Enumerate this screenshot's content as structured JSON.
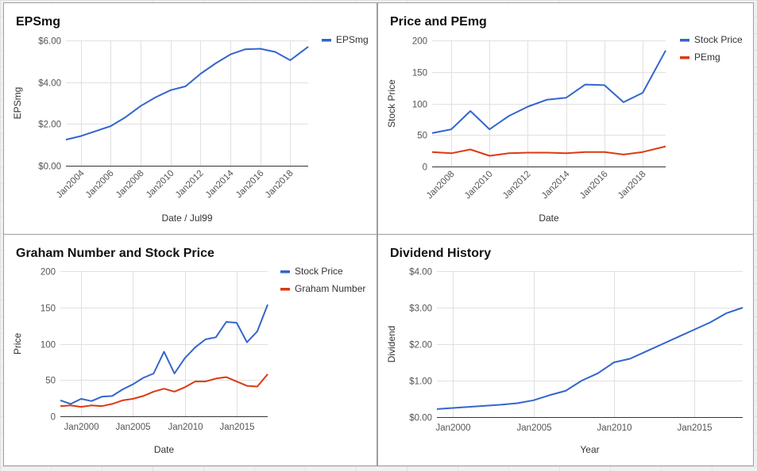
{
  "colors": {
    "blue": "#3366cc",
    "red": "#dc3912"
  },
  "chart_data": [
    {
      "id": "eps",
      "type": "line",
      "title": "EPSmg",
      "xlabel": "Date / Jul99",
      "ylabel": "EPSmg",
      "x_ticks": [
        "Jan2004",
        "Jan2006",
        "Jan2008",
        "Jan2010",
        "Jan2012",
        "Jan2014",
        "Jan2016",
        "Jan2018"
      ],
      "y_ticks": [
        "$0.00",
        "$2.00",
        "$4.00",
        "$6.00"
      ],
      "xlim": [
        2003,
        2019.2
      ],
      "ylim": [
        0,
        6
      ],
      "legend_position": "right",
      "grid": true,
      "series": [
        {
          "name": "EPSmg",
          "color": "#3366cc",
          "x": [
            2003,
            2004,
            2005,
            2006,
            2007,
            2008,
            2009,
            2010,
            2011,
            2012,
            2013,
            2014,
            2015,
            2016,
            2017,
            2018,
            2019.2
          ],
          "y": [
            1.25,
            1.42,
            1.66,
            1.9,
            2.33,
            2.86,
            3.28,
            3.62,
            3.8,
            4.4,
            4.9,
            5.33,
            5.58,
            5.6,
            5.45,
            5.05,
            5.7
          ]
        }
      ]
    },
    {
      "id": "pe",
      "type": "line",
      "title": "Price and PEmg",
      "xlabel": "Date",
      "ylabel": "Stock Price",
      "x_ticks": [
        "Jan2008",
        "Jan2010",
        "Jan2012",
        "Jan2014",
        "Jan2016",
        "Jan2018"
      ],
      "y_ticks": [
        "0",
        "50",
        "100",
        "150",
        "200"
      ],
      "xlim": [
        2007,
        2019.2
      ],
      "ylim": [
        0,
        200
      ],
      "legend_position": "right",
      "grid": true,
      "series": [
        {
          "name": "Stock Price",
          "color": "#3366cc",
          "x": [
            2007,
            2008,
            2009,
            2010,
            2011,
            2012,
            2013,
            2014,
            2015,
            2016,
            2017,
            2018,
            2019.2
          ],
          "y": [
            53,
            59,
            88,
            59,
            80,
            95,
            106,
            109,
            130,
            129,
            102,
            117,
            184
          ]
        },
        {
          "name": "PEmg",
          "color": "#dc3912",
          "x": [
            2007,
            2008,
            2009,
            2010,
            2011,
            2012,
            2013,
            2014,
            2015,
            2016,
            2017,
            2018,
            2019.2
          ],
          "y": [
            23,
            21,
            27,
            17,
            21,
            22,
            22,
            21,
            23,
            23,
            19,
            23,
            32
          ]
        }
      ]
    },
    {
      "id": "graham",
      "type": "line",
      "title": "Graham Number and Stock Price",
      "xlabel": "Date",
      "ylabel": "Price",
      "x_ticks": [
        "Jan2000",
        "Jan2005",
        "Jan2010",
        "Jan2015"
      ],
      "x_tick_values": [
        2000,
        2005,
        2010,
        2015
      ],
      "y_ticks": [
        "0",
        "50",
        "100",
        "150",
        "200"
      ],
      "xlim": [
        1998,
        2018
      ],
      "ylim": [
        0,
        200
      ],
      "legend_position": "right",
      "grid": true,
      "series": [
        {
          "name": "Stock Price",
          "color": "#3366cc",
          "x": [
            1998,
            1999,
            2000,
            2001,
            2002,
            2003,
            2004,
            2005,
            2006,
            2007,
            2008,
            2009,
            2010,
            2011,
            2012,
            2013,
            2014,
            2015,
            2016,
            2017,
            2018
          ],
          "y": [
            22,
            17,
            24,
            21,
            27,
            28,
            37,
            44,
            53,
            59,
            89,
            59,
            80,
            95,
            106,
            109,
            130,
            129,
            102,
            117,
            154
          ]
        },
        {
          "name": "Graham Number",
          "color": "#dc3912",
          "x": [
            1998,
            1999,
            2000,
            2001,
            2002,
            2003,
            2004,
            2005,
            2006,
            2007,
            2008,
            2009,
            2010,
            2011,
            2012,
            2013,
            2014,
            2015,
            2016,
            2017,
            2018
          ],
          "y": [
            14,
            15,
            13,
            15,
            14,
            17,
            22,
            24,
            28,
            34,
            38,
            34,
            40,
            48,
            48,
            52,
            54,
            48,
            42,
            41,
            58
          ]
        }
      ]
    },
    {
      "id": "dividend",
      "type": "line",
      "title": "Dividend History",
      "xlabel": "Year",
      "ylabel": "Dividend",
      "x_ticks": [
        "Jan2000",
        "Jan2005",
        "Jan2010",
        "Jan2015"
      ],
      "x_tick_values": [
        2000,
        2005,
        2010,
        2015
      ],
      "y_ticks": [
        "$0.00",
        "$1.00",
        "$2.00",
        "$3.00",
        "$4.00"
      ],
      "xlim": [
        1999,
        2018
      ],
      "ylim": [
        0,
        4
      ],
      "legend_position": "none",
      "grid": true,
      "series": [
        {
          "name": "",
          "color": "#3366cc",
          "x": [
            1999,
            2000,
            2001,
            2002,
            2003,
            2004,
            2005,
            2006,
            2007,
            2008,
            2009,
            2010,
            2011,
            2012,
            2013,
            2014,
            2015,
            2016,
            2017,
            2018
          ],
          "y": [
            0.22,
            0.25,
            0.28,
            0.31,
            0.34,
            0.38,
            0.46,
            0.6,
            0.72,
            1.0,
            1.2,
            1.5,
            1.6,
            1.8,
            2.0,
            2.2,
            2.4,
            2.6,
            2.85,
            3.0
          ]
        }
      ]
    }
  ]
}
